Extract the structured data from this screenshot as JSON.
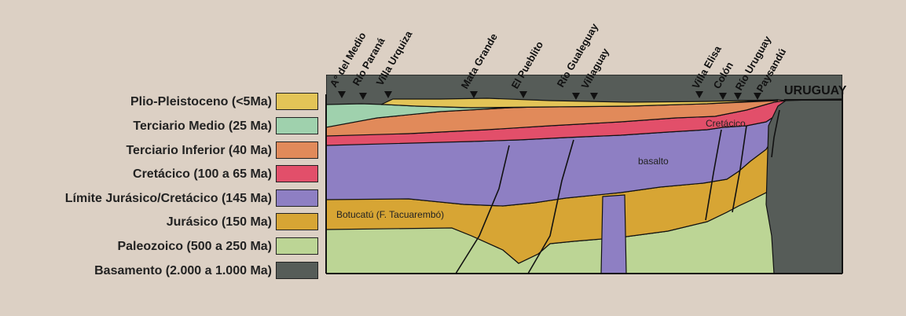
{
  "legend": [
    {
      "label": "Plio-Pleistoceno (<5Ma)",
      "color": "#e3c457"
    },
    {
      "label": "Terciario Medio (25 Ma)",
      "color": "#9fd1ad"
    },
    {
      "label": "Terciario Inferior (40 Ma)",
      "color": "#e18a5a"
    },
    {
      "label": "Cretácico (100 a 65 Ma)",
      "color": "#e24f6a"
    },
    {
      "label": "Límite Jurásico/Cretácico (145 Ma)",
      "color": "#8e7fc3"
    },
    {
      "label": "Jurásico (150 Ma)",
      "color": "#d7a534"
    },
    {
      "label": "Paleozoico (500 a 250 Ma)",
      "color": "#bcd595"
    },
    {
      "label": "Basamento (2.000 a 1.000 Ma)",
      "color": "#565c58"
    }
  ],
  "locations": [
    "A° del Medio",
    "Río Paraná",
    "Villa Urquiza",
    "Mata Grande",
    "El Pueblito",
    "Río Gualeguay",
    "Villaguay",
    "Villa Elisa",
    "Colón",
    "Río Uruguay",
    "Paysandú"
  ],
  "labels": {
    "country": "URUGUAY",
    "cretacico": "Cretácico",
    "basalto": "basalto",
    "botucatu": "Botucatú (F. Tacuarembó)"
  }
}
